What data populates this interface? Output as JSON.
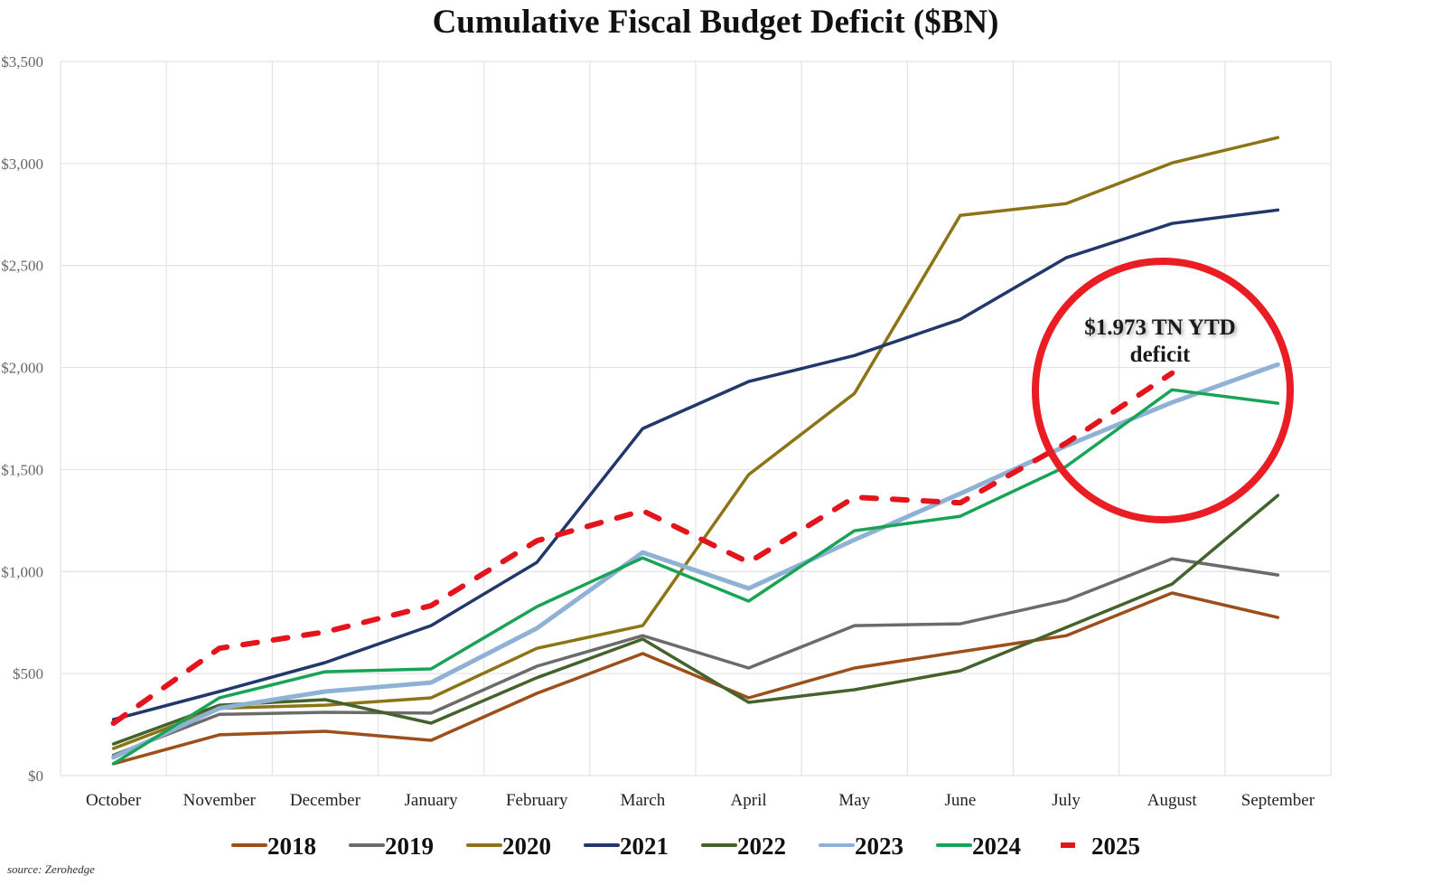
{
  "chart_data": {
    "type": "line",
    "title": "Cumulative Fiscal Budget Deficit ($BN)",
    "xlabel": "",
    "ylabel": "",
    "categories": [
      "October",
      "November",
      "December",
      "January",
      "February",
      "March",
      "April",
      "May",
      "June",
      "July",
      "August",
      "September"
    ],
    "ylim": [
      0,
      3500
    ],
    "yticks": [
      0,
      500,
      1000,
      1500,
      2000,
      2500,
      3000,
      3500
    ],
    "ytick_labels": [
      "$0",
      "$500",
      "$1,000",
      "$1,500",
      "$2,000",
      "$2,500",
      "$3,000",
      "$3,500"
    ],
    "grid": true,
    "legend_position": "bottom",
    "series": [
      {
        "name": "2018",
        "color": "#9c4f1a",
        "dashed": false,
        "values": [
          58,
          200,
          217,
          173,
          403,
          598,
          381,
          527,
          607,
          686,
          895,
          775
        ]
      },
      {
        "name": "2019",
        "color": "#6b6b6b",
        "dashed": false,
        "values": [
          100,
          300,
          310,
          306,
          536,
          686,
          527,
          735,
          744,
          859,
          1063,
          983
        ]
      },
      {
        "name": "2020",
        "color": "#8c7416",
        "dashed": false,
        "values": [
          133,
          330,
          345,
          381,
          624,
          735,
          1475,
          1873,
          2746,
          2803,
          3003,
          3127
        ]
      },
      {
        "name": "2021",
        "color": "#22386b",
        "dashed": false,
        "values": [
          275,
          412,
          554,
          735,
          1045,
          1701,
          1931,
          2059,
          2236,
          2538,
          2706,
          2772
        ]
      },
      {
        "name": "2022",
        "color": "#44632b",
        "dashed": false,
        "values": [
          155,
          345,
          372,
          257,
          480,
          669,
          359,
          421,
          514,
          726,
          939,
          1373
        ]
      },
      {
        "name": "2023",
        "color": "#8fb1d6",
        "dashed": false,
        "values": [
          89,
          330,
          412,
          456,
          722,
          1094,
          917,
          1156,
          1382,
          1616,
          1829,
          2015
        ]
      },
      {
        "name": "2024",
        "color": "#19a356",
        "dashed": false,
        "values": [
          58,
          381,
          509,
          523,
          828,
          1067,
          855,
          1200,
          1271,
          1515,
          1891,
          1825
        ]
      },
      {
        "name": "2025",
        "color": "#e3141c",
        "dashed": true,
        "values": [
          257,
          624,
          704,
          833,
          1151,
          1298,
          1045,
          1364,
          1337,
          1630,
          1973,
          null
        ]
      }
    ],
    "annotations": [
      {
        "text_line1": "$1.973 TN YTD",
        "text_line2": "deficit",
        "highlight": "red-circle",
        "near": "August"
      }
    ],
    "source": "source: Zerohedge"
  }
}
